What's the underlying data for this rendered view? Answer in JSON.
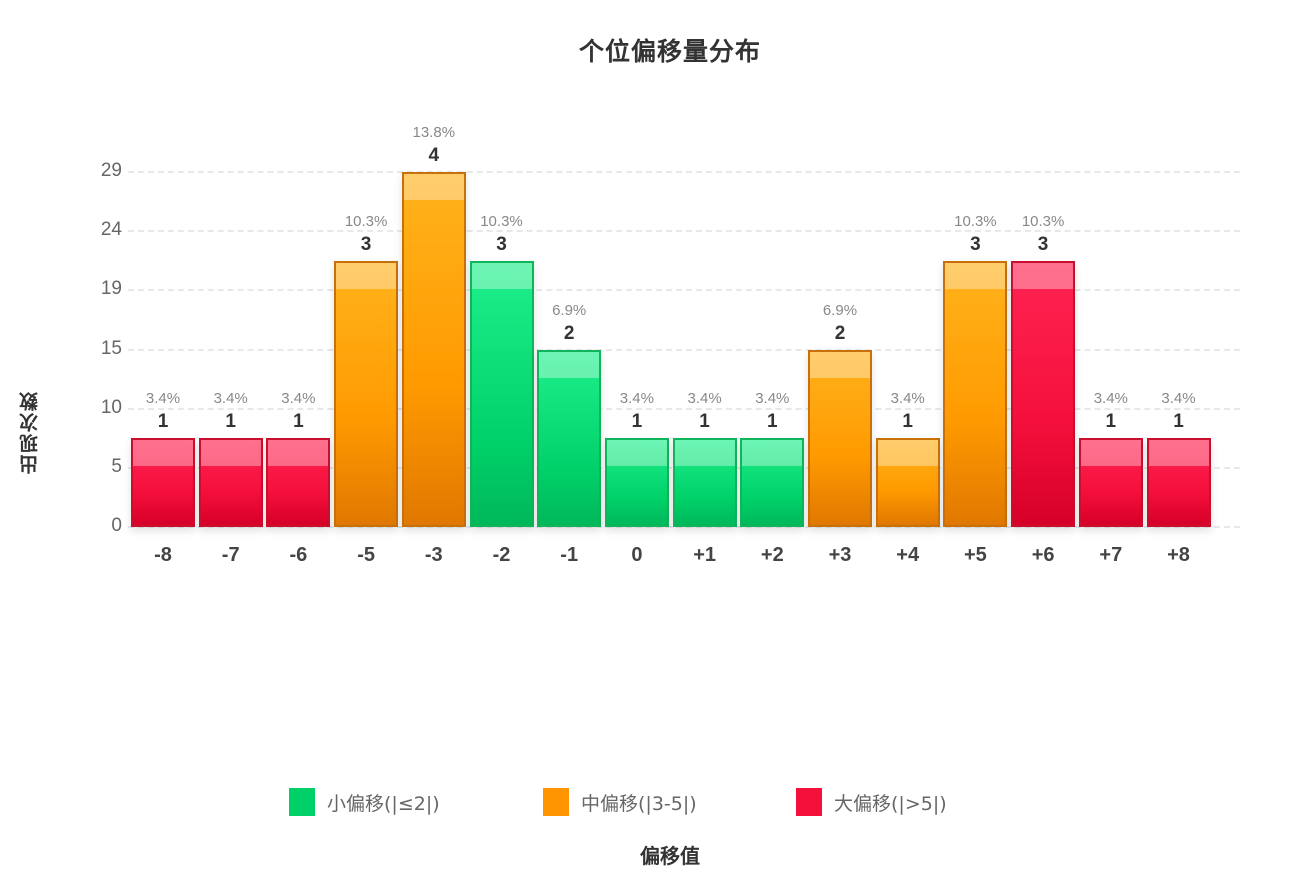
{
  "chart_data": {
    "type": "bar",
    "title": "个位偏移量分布",
    "xlabel": "偏移值",
    "ylabel": "出现次数",
    "categories": [
      "-8",
      "-7",
      "-6",
      "-5",
      "-3",
      "-2",
      "-1",
      "0",
      "+1",
      "+2",
      "+3",
      "+4",
      "+5",
      "+6",
      "+7",
      "+8"
    ],
    "values": [
      1,
      1,
      1,
      3,
      4,
      3,
      2,
      1,
      1,
      1,
      2,
      1,
      3,
      3,
      1,
      1
    ],
    "percent_labels": [
      "3.4%",
      "3.4%",
      "3.4%",
      "10.3%",
      "13.8%",
      "10.3%",
      "6.9%",
      "3.4%",
      "3.4%",
      "3.4%",
      "6.9%",
      "3.4%",
      "10.3%",
      "10.3%",
      "3.4%",
      "3.4%"
    ],
    "groups": [
      "large",
      "large",
      "large",
      "mid",
      "mid",
      "small",
      "small",
      "small",
      "small",
      "small",
      "mid",
      "mid",
      "mid",
      "large",
      "large",
      "large"
    ],
    "y_ticks": [
      "0",
      "5",
      "10",
      "15",
      "19",
      "24",
      "29"
    ],
    "ylim": [
      0,
      4
    ],
    "grid": true,
    "legend_position": "bottom",
    "legend": [
      {
        "key": "small",
        "label": "小偏移(|≤2|)",
        "color": "#00d068"
      },
      {
        "key": "mid",
        "label": "中偏移(|3-5|)",
        "color": "#ff9500"
      },
      {
        "key": "large",
        "label": "大偏移(|>5|)",
        "color": "#f5103c"
      }
    ]
  }
}
